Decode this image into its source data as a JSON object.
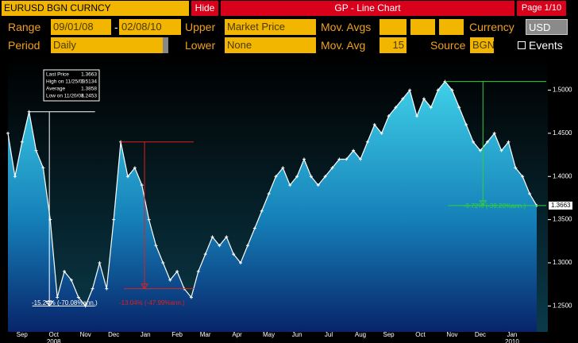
{
  "header": {
    "security": "EURUSD BGN CURNCY",
    "hide": "Hide",
    "title": "GP - Line Chart",
    "page": "Page 1/10"
  },
  "controls": {
    "range_label": "Range",
    "range_start": "09/01/08",
    "range_sep": "-",
    "range_end": "02/08/10",
    "upper_label": "Upper",
    "upper": "Market Price",
    "mov_avgs_label": "Mov. Avgs",
    "currency_label": "Currency",
    "currency": "USD",
    "period_label": "Period",
    "period": "Daily",
    "lower_label": "Lower",
    "lower": "None",
    "mov_avg_label": "Mov. Avg",
    "mov_avg": "15",
    "source_label": "Source",
    "source": "BGN",
    "events": "Events"
  },
  "chart_data": {
    "type": "line",
    "color": "#ffffff",
    "values": [
      1.45,
      1.4,
      1.44,
      1.475,
      1.43,
      1.41,
      1.35,
      1.26,
      1.29,
      1.28,
      1.26,
      1.25,
      1.27,
      1.3,
      1.27,
      1.35,
      1.44,
      1.4,
      1.41,
      1.39,
      1.35,
      1.32,
      1.3,
      1.28,
      1.29,
      1.27,
      1.26,
      1.29,
      1.31,
      1.33,
      1.32,
      1.33,
      1.31,
      1.3,
      1.32,
      1.34,
      1.36,
      1.38,
      1.4,
      1.41,
      1.39,
      1.4,
      1.42,
      1.4,
      1.39,
      1.4,
      1.41,
      1.42,
      1.42,
      1.43,
      1.42,
      1.44,
      1.46,
      1.45,
      1.47,
      1.48,
      1.49,
      1.5,
      1.47,
      1.49,
      1.48,
      1.5,
      1.51,
      1.5,
      1.48,
      1.46,
      1.44,
      1.43,
      1.44,
      1.45,
      1.43,
      1.44,
      1.41,
      1.4,
      1.38,
      1.3663
    ],
    "xlim": [
      0,
      75
    ],
    "xticks": [
      {
        "value": 2,
        "label": "Sep"
      },
      {
        "value": 6.5,
        "label": "Oct"
      },
      {
        "value": 11,
        "label": "Nov"
      },
      {
        "value": 15,
        "label": "Dec"
      },
      {
        "value": 19.5,
        "label": "Jan"
      },
      {
        "value": 24,
        "label": "Feb"
      },
      {
        "value": 28,
        "label": "Mar"
      },
      {
        "value": 32.5,
        "label": "Apr"
      },
      {
        "value": 37,
        "label": "May"
      },
      {
        "value": 41,
        "label": "Jun"
      },
      {
        "value": 45.5,
        "label": "Jul"
      },
      {
        "value": 50,
        "label": "Aug"
      },
      {
        "value": 54,
        "label": "Sep"
      },
      {
        "value": 58.5,
        "label": "Oct"
      },
      {
        "value": 63,
        "label": "Nov"
      },
      {
        "value": 67,
        "label": "Dec"
      },
      {
        "value": 71.5,
        "label": "Jan"
      }
    ],
    "years": [
      {
        "value": 6.5,
        "label": "2008"
      },
      {
        "value": 71.5,
        "label": "2010"
      }
    ],
    "ylim": [
      1.22,
      1.54
    ],
    "yticks": [
      {
        "value": 1.25,
        "label": "1.2500"
      },
      {
        "value": 1.3,
        "label": "1.3000"
      },
      {
        "value": 1.35,
        "label": "1.3500"
      },
      {
        "value": 1.4,
        "label": "1.4000"
      },
      {
        "value": 1.45,
        "label": "1.4500"
      },
      {
        "value": 1.5,
        "label": "1.5000"
      }
    ],
    "last_label": {
      "value": 1.3663,
      "label": "1.3663"
    },
    "info_box": [
      [
        "Last Price",
        "1.3663"
      ],
      [
        "High on 11/25/09",
        "1.5134"
      ],
      [
        "Average",
        "1.3858"
      ],
      [
        "Low on 11/20/08",
        "1.2453"
      ]
    ],
    "annotations": [
      "-15.24% (-70.08%ann.)",
      "-13.04% (-47.99%ann.)",
      "-9.72% (-39.20%ann.)"
    ]
  }
}
